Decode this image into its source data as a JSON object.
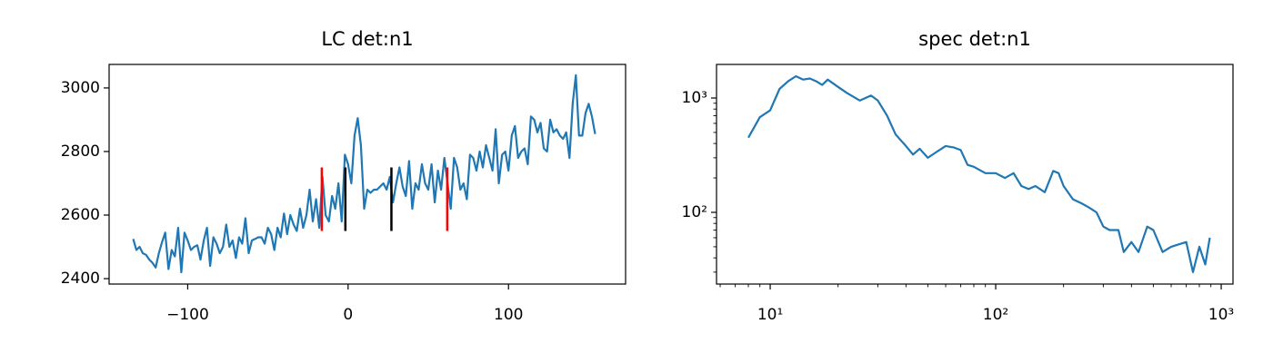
{
  "chart_data": [
    {
      "type": "line",
      "title": "LC det:n1",
      "xlim": [
        -149,
        173
      ],
      "ylim": [
        2383,
        3074
      ],
      "xticks": [
        {
          "value": -100,
          "label": "−100"
        },
        0,
        100
      ],
      "yticks": [
        2400,
        2600,
        2800,
        3000
      ],
      "series": [
        {
          "color": "#1f77b4",
          "x": [
            -134,
            -132,
            -130,
            -128,
            -126,
            -124,
            -122,
            -120,
            -118,
            -116,
            -114,
            -112,
            -110,
            -108,
            -106,
            -104,
            -102,
            -100,
            -98,
            -96,
            -94,
            -92,
            -90,
            -88,
            -86,
            -84,
            -82,
            -80,
            -78,
            -76,
            -74,
            -72,
            -70,
            -68,
            -66,
            -64,
            -62,
            -60,
            -58,
            -56,
            -54,
            -52,
            -50,
            -48,
            -46,
            -44,
            -42,
            -40,
            -38,
            -36,
            -34,
            -32,
            -30,
            -28,
            -26,
            -24,
            -22,
            -20,
            -18,
            -16,
            -14,
            -12,
            -10,
            -8,
            -6,
            -4,
            -2,
            0,
            2,
            4,
            6,
            8,
            10,
            12,
            14,
            16,
            18,
            20,
            22,
            24,
            26,
            28,
            30,
            32,
            34,
            36,
            38,
            40,
            42,
            44,
            46,
            48,
            50,
            52,
            54,
            56,
            58,
            60,
            62,
            64,
            66,
            68,
            70,
            72,
            74,
            76,
            78,
            80,
            82,
            84,
            86,
            88,
            90,
            92,
            94,
            96,
            98,
            100,
            102,
            104,
            106,
            108,
            110,
            112,
            114,
            116,
            118,
            120,
            122,
            124,
            126,
            128,
            130,
            132,
            134,
            136,
            138,
            140,
            142,
            144,
            146,
            148,
            150,
            152,
            154
          ],
          "values": [
            2525,
            2490,
            2500,
            2480,
            2475,
            2460,
            2450,
            2435,
            2480,
            2515,
            2545,
            2430,
            2490,
            2470,
            2560,
            2420,
            2545,
            2520,
            2490,
            2500,
            2505,
            2460,
            2520,
            2560,
            2440,
            2530,
            2510,
            2480,
            2500,
            2570,
            2500,
            2520,
            2465,
            2530,
            2510,
            2590,
            2480,
            2520,
            2525,
            2530,
            2530,
            2510,
            2560,
            2540,
            2490,
            2560,
            2530,
            2605,
            2540,
            2600,
            2570,
            2550,
            2620,
            2560,
            2600,
            2680,
            2580,
            2650,
            2560,
            2720,
            2600,
            2580,
            2660,
            2620,
            2700,
            2580,
            2790,
            2760,
            2700,
            2850,
            2905,
            2820,
            2620,
            2680,
            2670,
            2680,
            2680,
            2690,
            2700,
            2680,
            2720,
            2640,
            2700,
            2750,
            2690,
            2660,
            2770,
            2620,
            2700,
            2680,
            2760,
            2700,
            2680,
            2760,
            2640,
            2740,
            2680,
            2780,
            2700,
            2620,
            2780,
            2750,
            2680,
            2700,
            2650,
            2790,
            2780,
            2740,
            2800,
            2750,
            2820,
            2780,
            2740,
            2870,
            2700,
            2790,
            2800,
            2740,
            2850,
            2880,
            2780,
            2800,
            2810,
            2760,
            2910,
            2900,
            2860,
            2890,
            2810,
            2800,
            2900,
            2860,
            2870,
            2850,
            2840,
            2860,
            2780,
            2950,
            3040,
            2850,
            2850,
            2920,
            2950,
            2910,
            2855
          ]
        }
      ],
      "vlines": [
        {
          "x": -16.4,
          "color": "red",
          "y": [
            2550,
            2750
          ]
        },
        {
          "x": -1.7,
          "color": "black",
          "y": [
            2550,
            2750
          ]
        },
        {
          "x": 27,
          "color": "black",
          "y": [
            2550,
            2750
          ]
        },
        {
          "x": 61.8,
          "color": "red",
          "y": [
            2550,
            2750
          ]
        }
      ]
    },
    {
      "type": "line",
      "title": "spec det:n1",
      "xscale": "log",
      "yscale": "log",
      "xlim": [
        5.78,
        1128
      ],
      "ylim": [
        23.6,
        1966
      ],
      "xticks": [
        {
          "value": 10,
          "label": "10¹"
        },
        {
          "value": 100,
          "label": "10²"
        },
        {
          "value": 1000,
          "label": "10³"
        }
      ],
      "yticks": [
        {
          "value": 100,
          "label": "10²"
        },
        {
          "value": 1000,
          "label": "10³"
        }
      ],
      "xminorticks": [
        6,
        7,
        8,
        9,
        20,
        30,
        40,
        50,
        60,
        70,
        80,
        90,
        200,
        300,
        400,
        500,
        600,
        700,
        800,
        900
      ],
      "yminorticks": [
        30,
        40,
        50,
        60,
        70,
        80,
        90,
        200,
        300,
        400,
        500,
        600,
        700,
        800,
        900
      ],
      "series": [
        {
          "color": "#1f77b4",
          "x": [
            8,
            9,
            10,
            11,
            12,
            13,
            14,
            15,
            16,
            17,
            18,
            20,
            22,
            25,
            28,
            30,
            33,
            36,
            40,
            43,
            46,
            50,
            55,
            60,
            65,
            70,
            75,
            80,
            90,
            100,
            110,
            120,
            130,
            140,
            150,
            165,
            180,
            190,
            200,
            220,
            240,
            260,
            280,
            300,
            320,
            350,
            370,
            400,
            430,
            470,
            500,
            550,
            600,
            700,
            750,
            800,
            850,
            890
          ],
          "values": [
            450,
            680,
            780,
            1200,
            1400,
            1550,
            1450,
            1480,
            1400,
            1300,
            1450,
            1250,
            1100,
            950,
            1050,
            950,
            700,
            480,
            380,
            320,
            360,
            300,
            340,
            380,
            370,
            350,
            260,
            250,
            220,
            220,
            200,
            220,
            170,
            160,
            170,
            150,
            230,
            220,
            170,
            130,
            120,
            110,
            100,
            75,
            70,
            70,
            45,
            55,
            45,
            75,
            70,
            45,
            50,
            55,
            30,
            50,
            35,
            60
          ]
        }
      ]
    }
  ]
}
